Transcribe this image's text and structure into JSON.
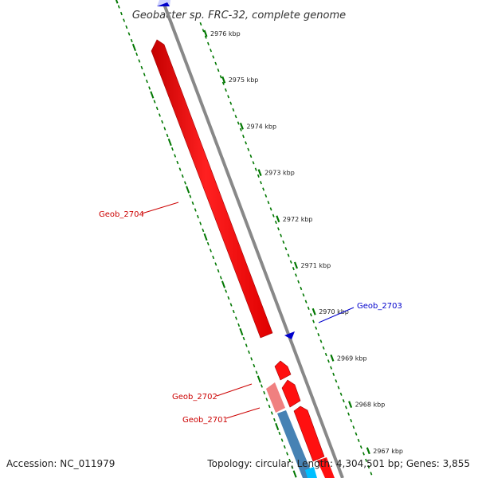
{
  "title": "Geobacter sp. FRC-32, complete genome",
  "ticks": [
    {
      "kbp": 2976,
      "label": "2976 kbp"
    },
    {
      "kbp": 2975,
      "label": "2975 kbp"
    },
    {
      "kbp": 2974,
      "label": "2974 kbp"
    },
    {
      "kbp": 2973,
      "label": "2973 kbp"
    },
    {
      "kbp": 2972,
      "label": "2972 kbp"
    },
    {
      "kbp": 2971,
      "label": "2971 kbp"
    },
    {
      "kbp": 2970,
      "label": "2970 kbp"
    },
    {
      "kbp": 2969,
      "label": "2969 kbp"
    },
    {
      "kbp": 2968,
      "label": "2968 kbp"
    },
    {
      "kbp": 2967,
      "label": "2967 kbp"
    }
  ],
  "gene_labels": {
    "geob_2704": "Geob_2704",
    "geob_2703": "Geob_2703",
    "geob_2702": "Geob_2702",
    "geob_2701": "Geob_2701"
  },
  "colors": {
    "forward_gene": "#ff0000",
    "forward_gene_light": "#f08080",
    "reverse_gene": "#0000cc",
    "backbone": "#888888",
    "tick": "#007700",
    "blue_feature": "#4682b4",
    "cyan_feature": "#00bfff"
  },
  "footer": {
    "accession": "Accession: NC_011979",
    "stats": "Topology: circular; Length: 4,304,501 bp; Genes: 3,855"
  }
}
